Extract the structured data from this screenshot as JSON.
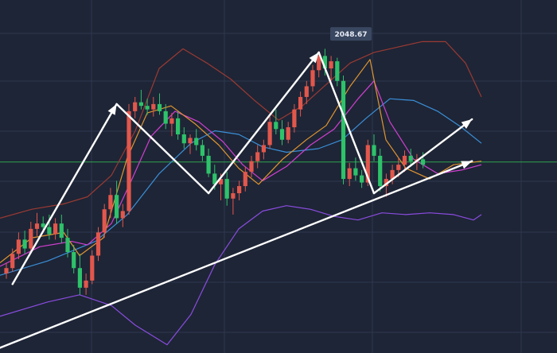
{
  "chart_data": {
    "type": "candlestick",
    "title": "",
    "xlabel": "",
    "ylabel": "",
    "ylim": [
      1750,
      2080
    ],
    "grid": true,
    "colors": {
      "background": "#1e2536",
      "up_candle": "#e2574c",
      "down_candle": "#2ec26a",
      "grid": "#2e3850",
      "horizontal_level": "#2fa44f",
      "bollinger_band": "#9a3a33",
      "ma_blue": "#3a8fd8",
      "ma_orange": "#e0952f",
      "ma_magenta": "#d23fd2",
      "ma_purple": "#8a4ce0",
      "annotation": "#ffffff",
      "price_tag_bg": "#3a4760"
    },
    "price_label": "2048.67",
    "peak_value": 2048.67,
    "horizontal_level": 1925,
    "candles": [
      [
        1800,
        1812,
        1794,
        1806
      ],
      [
        1806,
        1828,
        1802,
        1822
      ],
      [
        1822,
        1846,
        1816,
        1838
      ],
      [
        1838,
        1848,
        1822,
        1828
      ],
      [
        1828,
        1858,
        1824,
        1850
      ],
      [
        1850,
        1868,
        1842,
        1856
      ],
      [
        1856,
        1864,
        1846,
        1852
      ],
      [
        1852,
        1866,
        1838,
        1844
      ],
      [
        1844,
        1862,
        1838,
        1856
      ],
      [
        1856,
        1866,
        1834,
        1840
      ],
      [
        1840,
        1850,
        1818,
        1824
      ],
      [
        1824,
        1832,
        1800,
        1806
      ],
      [
        1806,
        1822,
        1776,
        1784
      ],
      [
        1784,
        1800,
        1776,
        1792
      ],
      [
        1792,
        1826,
        1788,
        1820
      ],
      [
        1820,
        1852,
        1814,
        1846
      ],
      [
        1846,
        1878,
        1840,
        1872
      ],
      [
        1872,
        1896,
        1862,
        1888
      ],
      [
        1888,
        1904,
        1856,
        1862
      ],
      [
        1862,
        1878,
        1852,
        1870
      ],
      [
        1870,
        1990,
        1866,
        1982
      ],
      [
        1982,
        1998,
        1974,
        1992
      ],
      [
        1992,
        2006,
        1984,
        1988
      ],
      [
        1988,
        1996,
        1978,
        1984
      ],
      [
        1984,
        1998,
        1976,
        1990
      ],
      [
        1990,
        2002,
        1978,
        1982
      ],
      [
        1982,
        1990,
        1962,
        1968
      ],
      [
        1968,
        1980,
        1954,
        1974
      ],
      [
        1974,
        1982,
        1950,
        1956
      ],
      [
        1956,
        1964,
        1940,
        1946
      ],
      [
        1946,
        1956,
        1934,
        1952
      ],
      [
        1952,
        1962,
        1938,
        1944
      ],
      [
        1944,
        1950,
        1926,
        1932
      ],
      [
        1932,
        1940,
        1908,
        1912
      ],
      [
        1912,
        1922,
        1894,
        1900
      ],
      [
        1900,
        1912,
        1882,
        1906
      ],
      [
        1906,
        1914,
        1876,
        1884
      ],
      [
        1884,
        1896,
        1866,
        1890
      ],
      [
        1890,
        1904,
        1882,
        1898
      ],
      [
        1898,
        1920,
        1892,
        1914
      ],
      [
        1914,
        1932,
        1908,
        1926
      ],
      [
        1926,
        1944,
        1918,
        1936
      ],
      [
        1936,
        1950,
        1928,
        1944
      ],
      [
        1944,
        1976,
        1940,
        1970
      ],
      [
        1970,
        1984,
        1956,
        1962
      ],
      [
        1962,
        1972,
        1944,
        1950
      ],
      [
        1950,
        1970,
        1946,
        1964
      ],
      [
        1964,
        1990,
        1958,
        1984
      ],
      [
        1984,
        2004,
        1976,
        1998
      ],
      [
        1998,
        2016,
        1990,
        2010
      ],
      [
        2010,
        2034,
        2004,
        2028
      ],
      [
        2028,
        2048,
        2020,
        2044
      ],
      [
        2044,
        2052,
        2022,
        2030
      ],
      [
        2030,
        2044,
        2016,
        2038
      ],
      [
        2038,
        2042,
        2010,
        2016
      ],
      [
        2016,
        2022,
        1900,
        1906
      ],
      [
        1906,
        1924,
        1898,
        1918
      ],
      [
        1918,
        1930,
        1904,
        1910
      ],
      [
        1910,
        1916,
        1896,
        1902
      ],
      [
        1902,
        1950,
        1898,
        1944
      ],
      [
        1944,
        1956,
        1926,
        1932
      ],
      [
        1932,
        1940,
        1892,
        1898
      ],
      [
        1898,
        1912,
        1886,
        1906
      ],
      [
        1906,
        1922,
        1900,
        1916
      ],
      [
        1916,
        1930,
        1908,
        1922
      ],
      [
        1922,
        1938,
        1914,
        1932
      ],
      [
        1932,
        1940,
        1920,
        1926
      ],
      [
        1926,
        1934,
        1916,
        1928
      ],
      [
        1928,
        1936,
        1918,
        1922
      ]
    ],
    "bollinger_upper": [
      [
        0,
        1862
      ],
      [
        40,
        1872
      ],
      [
        80,
        1878
      ],
      [
        110,
        1886
      ],
      [
        140,
        1910
      ],
      [
        170,
        1960
      ],
      [
        200,
        2030
      ],
      [
        230,
        2052
      ],
      [
        260,
        2036
      ],
      [
        290,
        2018
      ],
      [
        320,
        1994
      ],
      [
        350,
        1972
      ],
      [
        380,
        1988
      ],
      [
        410,
        2012
      ],
      [
        440,
        2036
      ],
      [
        470,
        2048
      ],
      [
        500,
        2054
      ],
      [
        530,
        2060
      ],
      [
        560,
        2060
      ],
      [
        585,
        2036
      ],
      [
        605,
        1998
      ]
    ],
    "bollinger_lower": [
      [
        0,
        1752
      ],
      [
        60,
        1768
      ],
      [
        100,
        1776
      ],
      [
        140,
        1764
      ],
      [
        170,
        1742
      ],
      [
        210,
        1720
      ],
      [
        240,
        1754
      ],
      [
        270,
        1810
      ],
      [
        300,
        1850
      ],
      [
        330,
        1870
      ],
      [
        360,
        1876
      ],
      [
        390,
        1872
      ],
      [
        420,
        1864
      ],
      [
        450,
        1860
      ],
      [
        480,
        1868
      ],
      [
        510,
        1866
      ],
      [
        540,
        1868
      ],
      [
        570,
        1866
      ],
      [
        595,
        1860
      ],
      [
        605,
        1866
      ]
    ],
    "ma_blue": [
      [
        0,
        1798
      ],
      [
        60,
        1814
      ],
      [
        120,
        1836
      ],
      [
        160,
        1866
      ],
      [
        200,
        1912
      ],
      [
        240,
        1946
      ],
      [
        270,
        1960
      ],
      [
        300,
        1956
      ],
      [
        330,
        1942
      ],
      [
        360,
        1936
      ],
      [
        400,
        1940
      ],
      [
        430,
        1950
      ],
      [
        460,
        1974
      ],
      [
        490,
        1996
      ],
      [
        520,
        1994
      ],
      [
        550,
        1982
      ],
      [
        580,
        1964
      ],
      [
        605,
        1946
      ]
    ],
    "ma_magenta": [
      [
        0,
        1808
      ],
      [
        50,
        1830
      ],
      [
        90,
        1836
      ],
      [
        110,
        1832
      ],
      [
        140,
        1856
      ],
      [
        165,
        1904
      ],
      [
        190,
        1954
      ],
      [
        220,
        1982
      ],
      [
        250,
        1970
      ],
      [
        280,
        1948
      ],
      [
        305,
        1922
      ],
      [
        330,
        1904
      ],
      [
        360,
        1920
      ],
      [
        390,
        1944
      ],
      [
        420,
        1962
      ],
      [
        450,
        1996
      ],
      [
        470,
        2016
      ],
      [
        490,
        1970
      ],
      [
        520,
        1928
      ],
      [
        550,
        1912
      ],
      [
        580,
        1916
      ],
      [
        605,
        1922
      ]
    ],
    "ma_orange": [
      [
        0,
        1812
      ],
      [
        40,
        1840
      ],
      [
        80,
        1846
      ],
      [
        100,
        1820
      ],
      [
        130,
        1840
      ],
      [
        160,
        1930
      ],
      [
        185,
        1980
      ],
      [
        215,
        1988
      ],
      [
        245,
        1968
      ],
      [
        275,
        1944
      ],
      [
        300,
        1918
      ],
      [
        325,
        1900
      ],
      [
        355,
        1928
      ],
      [
        385,
        1950
      ],
      [
        410,
        1966
      ],
      [
        440,
        2010
      ],
      [
        465,
        2040
      ],
      [
        485,
        1950
      ],
      [
        510,
        1918
      ],
      [
        540,
        1906
      ],
      [
        570,
        1922
      ],
      [
        605,
        1926
      ]
    ],
    "annotations": {
      "zigzag": [
        {
          "from": [
            1,
            1788
          ],
          "to": [
            18,
            1990
          ]
        },
        {
          "from": [
            18,
            1990
          ],
          "to": [
            33,
            1890
          ]
        },
        {
          "from": [
            33,
            1890
          ],
          "to": [
            51,
            2048
          ]
        },
        {
          "from": [
            51,
            2048
          ],
          "to": [
            60,
            1890
          ]
        },
        {
          "from": [
            60,
            1890
          ],
          "to": [
            76,
            1973
          ]
        }
      ],
      "trendline": {
        "from": [
          -9,
          1695
        ],
        "to": [
          76,
          1926
        ]
      }
    }
  }
}
